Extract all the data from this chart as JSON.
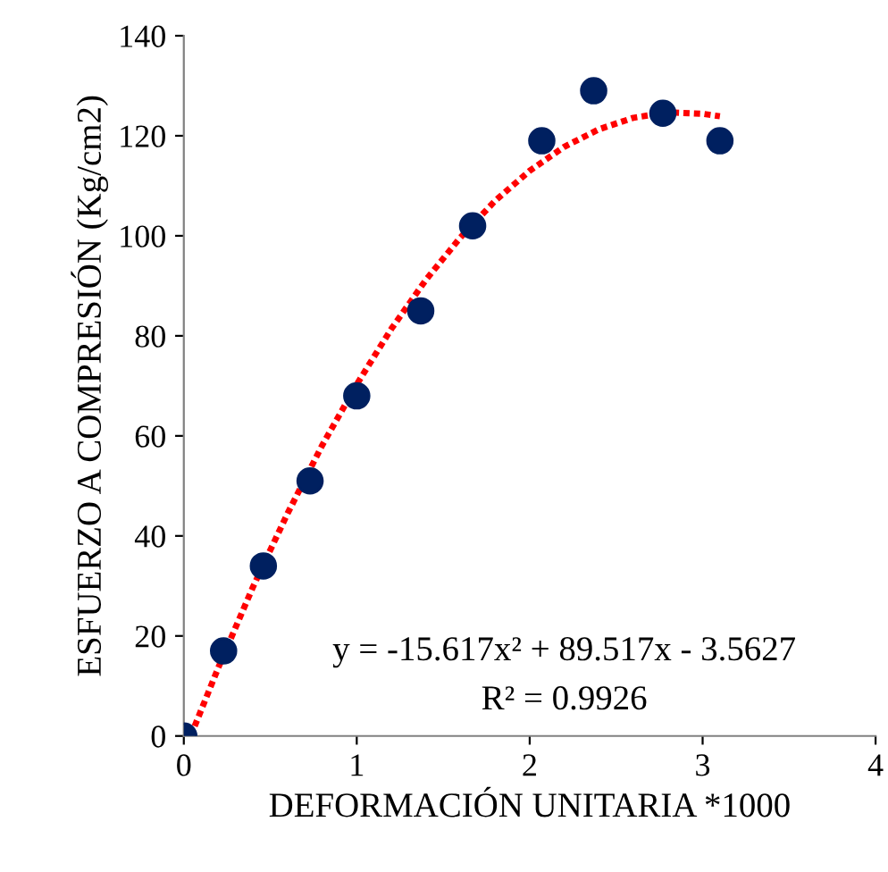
{
  "chart_data": {
    "type": "scatter",
    "xlabel": "DEFORMACIÓN UNITARIA *1000",
    "ylabel": "ESFUERZO A COMPRESIÓN (Kg/cm2)",
    "xlim": [
      0,
      4
    ],
    "xticks": [
      0,
      1,
      2,
      3,
      4
    ],
    "ylim": [
      0,
      140
    ],
    "yticks": [
      0,
      20,
      40,
      60,
      80,
      100,
      120,
      140
    ],
    "grid": false,
    "legend": false,
    "marker": "circle",
    "series": [
      {
        "color": "#002060",
        "x": [
          0,
          0.23,
          0.46,
          0.73,
          1.0,
          1.37,
          1.67,
          2.07,
          2.37,
          2.77,
          3.1
        ],
        "values": [
          0,
          17,
          34,
          51,
          68,
          85,
          102,
          119,
          129,
          124.5,
          119
        ]
      },
      {
        "type": "line",
        "color": "#ff0000",
        "line_style": "dotted",
        "marker": "none",
        "x": [
          0.04,
          0.2,
          0.4,
          0.6,
          0.8,
          1.0,
          1.2,
          1.4,
          1.6,
          1.8,
          2.0,
          2.2,
          2.4,
          2.6,
          2.8,
          3.0,
          3.1
        ],
        "values": [
          0,
          13.7,
          29.8,
          44.5,
          58.1,
          70.3,
          81.4,
          91.2,
          99.7,
          107,
          113,
          117.8,
          121.3,
          123.6,
          124.7,
          124.4,
          123.9
        ]
      }
    ],
    "annotations": [
      "y = -15.617x² + 89.517x - 3.5627",
      "R² = 0.9926"
    ]
  }
}
